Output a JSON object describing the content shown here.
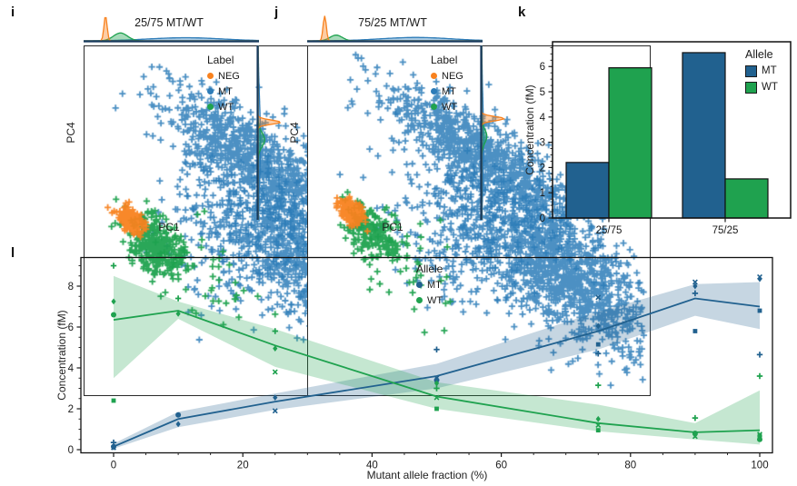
{
  "colors": {
    "mt_blue": "#21618f",
    "mt_scatter_blue": "#2d7cb8",
    "wt_green": "#1fa24f",
    "neg_orange": "#f8821f",
    "marginal_baseline": "#17395c",
    "axis": "#1a1a1a"
  },
  "panels": {
    "i": {
      "letter": "i",
      "title": "25/75 MT/WT",
      "xlabel": "PC1",
      "ylabel": "PC4",
      "legend": {
        "title": "Label",
        "items": [
          {
            "label": "NEG",
            "key": "neg_orange"
          },
          {
            "label": "MT",
            "key": "mt_scatter_blue"
          },
          {
            "label": "WT",
            "key": "wt_green"
          }
        ]
      }
    },
    "j": {
      "letter": "j",
      "title": "75/25 MT/WT",
      "xlabel": "PC1",
      "ylabel": "PC4",
      "legend": {
        "title": "Label",
        "items": [
          {
            "label": "NEG",
            "key": "neg_orange"
          },
          {
            "label": "MT",
            "key": "mt_scatter_blue"
          },
          {
            "label": "WT",
            "key": "wt_green"
          }
        ]
      }
    },
    "k": {
      "letter": "k",
      "ylabel": "Concentration (fM)",
      "legend": {
        "title": "Allele",
        "items": [
          {
            "label": "MT",
            "key": "mt_blue"
          },
          {
            "label": "WT",
            "key": "wt_green"
          }
        ]
      }
    },
    "l": {
      "letter": "l",
      "xlabel": "Mutant allele fraction (%)",
      "ylabel": "Concentration (fM)",
      "legend": {
        "title": "Allele",
        "items": [
          {
            "label": "MT",
            "key": "mt_blue"
          },
          {
            "label": "WT",
            "key": "wt_green"
          }
        ]
      }
    }
  },
  "chart_data": [
    {
      "panel": "i",
      "type": "scatter",
      "title": "25/75 MT/WT",
      "xlabel": "PC1",
      "ylabel": "PC4",
      "legend": [
        "NEG",
        "MT",
        "WT"
      ],
      "seed": 42,
      "approx_clusters": [
        {
          "label": "MT",
          "n": 900,
          "cx": 0.5,
          "cy": 0.33,
          "angle": 35,
          "sx": 0.17,
          "sy": 0.055
        },
        {
          "label": "MT",
          "n": 1150,
          "cx": 0.7,
          "cy": 0.63,
          "angle": 35,
          "sx": 0.16,
          "sy": 0.075
        },
        {
          "label": "MT",
          "n": 260,
          "cx": 0.45,
          "cy": 0.55,
          "angle": 35,
          "sx": 0.13,
          "sy": 0.1
        },
        {
          "label": "WT",
          "n": 300,
          "cx": 0.205,
          "cy": 0.57,
          "angle": 45,
          "sx": 0.055,
          "sy": 0.032
        },
        {
          "label": "WT",
          "n": 55,
          "cx": 0.33,
          "cy": 0.63,
          "angle": 40,
          "sx": 0.1,
          "sy": 0.05
        },
        {
          "label": "NEG",
          "n": 230,
          "cx": 0.135,
          "cy": 0.5,
          "angle": 45,
          "sx": 0.022,
          "sy": 0.013
        }
      ],
      "marginals": {
        "top": [
          {
            "label": "MT",
            "center": 0.58,
            "sigma": 0.21,
            "amp": 0.12
          },
          {
            "label": "WT",
            "center": 0.21,
            "sigma": 0.04,
            "amp": 0.3
          },
          {
            "label": "NEG",
            "center": 0.125,
            "sigma": 0.009,
            "amp": 0.95
          }
        ],
        "right": [
          {
            "label": "MT",
            "center": 0.55,
            "sigma": 0.24,
            "amp": 0.1
          },
          {
            "label": "WT",
            "center": 0.54,
            "sigma": 0.04,
            "amp": 0.28
          },
          {
            "label": "NEG",
            "center": 0.44,
            "sigma": 0.012,
            "amp": 0.95
          }
        ]
      }
    },
    {
      "panel": "j",
      "type": "scatter",
      "title": "75/25 MT/WT",
      "xlabel": "PC1",
      "ylabel": "PC4",
      "legend": [
        "NEG",
        "MT",
        "WT"
      ],
      "seed": 77,
      "approx_clusters": [
        {
          "label": "MT",
          "n": 1000,
          "cx": 0.52,
          "cy": 0.33,
          "angle": 35,
          "sx": 0.17,
          "sy": 0.055
        },
        {
          "label": "MT",
          "n": 1300,
          "cx": 0.73,
          "cy": 0.64,
          "angle": 35,
          "sx": 0.17,
          "sy": 0.075
        },
        {
          "label": "MT",
          "n": 220,
          "cx": 0.44,
          "cy": 0.55,
          "angle": 35,
          "sx": 0.13,
          "sy": 0.1
        },
        {
          "label": "WT",
          "n": 220,
          "cx": 0.19,
          "cy": 0.54,
          "angle": 45,
          "sx": 0.05,
          "sy": 0.03
        },
        {
          "label": "WT",
          "n": 45,
          "cx": 0.3,
          "cy": 0.62,
          "angle": 40,
          "sx": 0.09,
          "sy": 0.05
        },
        {
          "label": "NEG",
          "n": 230,
          "cx": 0.125,
          "cy": 0.47,
          "angle": 45,
          "sx": 0.022,
          "sy": 0.013
        }
      ],
      "marginals": {
        "top": [
          {
            "label": "MT",
            "center": 0.62,
            "sigma": 0.2,
            "amp": 0.13
          },
          {
            "label": "WT",
            "center": 0.165,
            "sigma": 0.035,
            "amp": 0.22
          },
          {
            "label": "NEG",
            "center": 0.1,
            "sigma": 0.009,
            "amp": 0.95
          }
        ],
        "right": [
          {
            "label": "MT",
            "center": 0.55,
            "sigma": 0.25,
            "amp": 0.08
          },
          {
            "label": "WT",
            "center": 0.52,
            "sigma": 0.04,
            "amp": 0.22
          },
          {
            "label": "NEG",
            "center": 0.42,
            "sigma": 0.012,
            "amp": 0.95
          }
        ]
      }
    },
    {
      "panel": "k",
      "type": "bar",
      "categories": [
        "25/75",
        "75/25"
      ],
      "series": [
        {
          "name": "MT",
          "color_key": "mt_blue",
          "values": [
            2.2,
            6.55
          ]
        },
        {
          "name": "WT",
          "color_key": "wt_green",
          "values": [
            5.95,
            1.55
          ]
        }
      ],
      "ylabel": "Concentration (fM)",
      "ylim": [
        0,
        6.98
      ],
      "yticks": [
        0,
        1,
        2,
        3,
        4,
        5,
        6
      ],
      "ytick_minor_step": 0.25,
      "legend_title": "Allele",
      "legend_position": "top-right"
    },
    {
      "panel": "l",
      "type": "line",
      "xlabel": "Mutant allele fraction (%)",
      "ylabel": "Concentration (fM)",
      "xlim": [
        -5,
        102
      ],
      "ylim": [
        -0.15,
        9.4
      ],
      "xticks": [
        0,
        20,
        40,
        60,
        80,
        100
      ],
      "xtick_minor_step": 5,
      "yticks": [
        0,
        2,
        4,
        6,
        8
      ],
      "ytick_minor_step": 0.5,
      "legend_title": "Allele",
      "legend_position": "top-center",
      "series": [
        {
          "name": "MT",
          "color_key": "mt_blue",
          "x": [
            0,
            10,
            25,
            50,
            75,
            90,
            100
          ],
          "mean": [
            0.15,
            1.5,
            2.35,
            3.6,
            5.8,
            7.4,
            7.0
          ],
          "band_low": [
            0.05,
            1.1,
            1.95,
            3.0,
            4.9,
            6.55,
            5.9
          ],
          "band_high": [
            0.3,
            1.85,
            2.75,
            4.2,
            6.75,
            8.1,
            8.2
          ],
          "points": [
            {
              "x": 0,
              "y": 0.35,
              "m": "plus"
            },
            {
              "x": 0,
              "y": 0.15,
              "m": "circle"
            },
            {
              "x": 0,
              "y": 0.1,
              "m": "x"
            },
            {
              "x": 0,
              "y": 0.12,
              "m": "diamond"
            },
            {
              "x": 10,
              "y": 1.7,
              "m": "circle"
            },
            {
              "x": 10,
              "y": 1.25,
              "m": "diamond"
            },
            {
              "x": 25,
              "y": 2.55,
              "m": "diamond"
            },
            {
              "x": 25,
              "y": 1.9,
              "m": "x"
            },
            {
              "x": 50,
              "y": 4.9,
              "m": "plus"
            },
            {
              "x": 50,
              "y": 3.5,
              "m": "x"
            },
            {
              "x": 50,
              "y": 3.4,
              "m": "circle"
            },
            {
              "x": 75,
              "y": 7.45,
              "m": "x"
            },
            {
              "x": 75,
              "y": 6.05,
              "m": "diamond"
            },
            {
              "x": 75,
              "y": 5.15,
              "m": "square"
            },
            {
              "x": 75,
              "y": 4.7,
              "m": "plus"
            },
            {
              "x": 90,
              "y": 8.2,
              "m": "x"
            },
            {
              "x": 90,
              "y": 8.0,
              "m": "diamond"
            },
            {
              "x": 90,
              "y": 7.65,
              "m": "plus"
            },
            {
              "x": 90,
              "y": 5.8,
              "m": "square"
            },
            {
              "x": 100,
              "y": 8.45,
              "m": "x"
            },
            {
              "x": 100,
              "y": 8.35,
              "m": "diamond"
            },
            {
              "x": 100,
              "y": 6.8,
              "m": "square"
            },
            {
              "x": 100,
              "y": 4.65,
              "m": "plus"
            }
          ]
        },
        {
          "name": "WT",
          "color_key": "wt_green",
          "x": [
            0,
            10,
            25,
            50,
            75,
            90,
            100
          ],
          "mean": [
            6.35,
            6.8,
            5.1,
            2.6,
            1.3,
            0.85,
            0.95
          ],
          "band_low": [
            3.5,
            6.4,
            4.05,
            2.0,
            0.9,
            0.5,
            0.25
          ],
          "band_high": [
            8.5,
            7.25,
            5.9,
            3.3,
            2.2,
            1.3,
            2.9
          ],
          "points": [
            {
              "x": 0,
              "y": 9.0,
              "m": "plus"
            },
            {
              "x": 0,
              "y": 7.25,
              "m": "diamond"
            },
            {
              "x": 0,
              "y": 6.6,
              "m": "circle"
            },
            {
              "x": 0,
              "y": 2.4,
              "m": "square"
            },
            {
              "x": 10,
              "y": 7.4,
              "m": "plus"
            },
            {
              "x": 10,
              "y": 6.65,
              "m": "diamond"
            },
            {
              "x": 25,
              "y": 5.8,
              "m": "plus"
            },
            {
              "x": 25,
              "y": 4.95,
              "m": "diamond"
            },
            {
              "x": 25,
              "y": 3.8,
              "m": "x"
            },
            {
              "x": 50,
              "y": 3.25,
              "m": "diamond"
            },
            {
              "x": 50,
              "y": 3.0,
              "m": "plus"
            },
            {
              "x": 50,
              "y": 2.55,
              "m": "x"
            },
            {
              "x": 50,
              "y": 2.0,
              "m": "square"
            },
            {
              "x": 75,
              "y": 3.15,
              "m": "plus"
            },
            {
              "x": 75,
              "y": 1.5,
              "m": "diamond"
            },
            {
              "x": 75,
              "y": 1.2,
              "m": "x"
            },
            {
              "x": 75,
              "y": 0.95,
              "m": "square"
            },
            {
              "x": 90,
              "y": 1.55,
              "m": "plus"
            },
            {
              "x": 90,
              "y": 0.8,
              "m": "circle"
            },
            {
              "x": 90,
              "y": 0.72,
              "m": "diamond"
            },
            {
              "x": 90,
              "y": 0.65,
              "m": "x"
            },
            {
              "x": 100,
              "y": 3.6,
              "m": "plus"
            },
            {
              "x": 100,
              "y": 0.75,
              "m": "x"
            },
            {
              "x": 100,
              "y": 0.68,
              "m": "square"
            },
            {
              "x": 100,
              "y": 0.5,
              "m": "circle"
            }
          ]
        }
      ]
    }
  ]
}
